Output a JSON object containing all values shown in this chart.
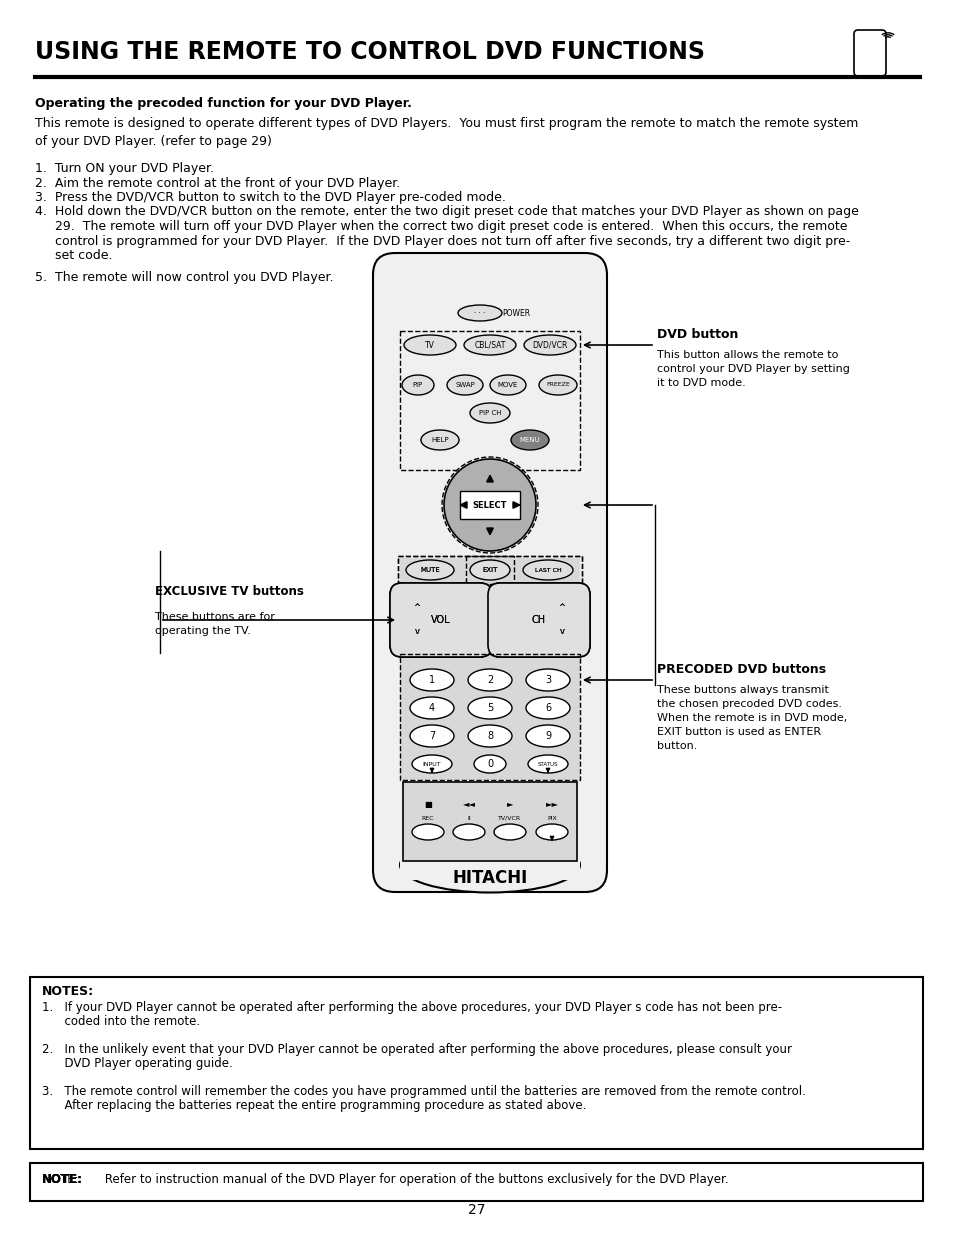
{
  "title": "USING THE REMOTE TO CONTROL DVD FUNCTIONS",
  "page_number": "27",
  "background_color": "#ffffff",
  "text_color": "#000000",
  "section_heading": "Operating the precoded function for your DVD Player.",
  "intro_text": "This remote is designed to operate different types of DVD Players.  You must first program the remote to match the remote system\nof your DVD Player. (refer to page 29)",
  "step1": "1.  Turn ON your DVD Player.",
  "step2": "2.  Aim the remote control at the front of your DVD Player.",
  "step3": "3.  Press the DVD/VCR button to switch to the DVD Player pre-coded mode.",
  "step4a": "4.  Hold down the DVD/VCR button on the remote, enter the two digit preset code that matches your DVD Player as shown on page",
  "step4b": "     29.  The remote will turn off your DVD Player when the correct two digit preset code is entered.  When this occurs, the remote",
  "step4c": "     control is programmed for your DVD Player.  If the DVD Player does not turn off after five seconds, try a different two digit pre-",
  "step4d": "     set code.",
  "step5": "5.  The remote will now control you DVD Player.",
  "notes_title": "NOTES:",
  "note1a": "1.   If your DVD Player cannot be operated after performing the above procedures, your DVD Player s code has not been pre-",
  "note1b": "      coded into the remote.",
  "note2a": "2.   In the unlikely event that your DVD Player cannot be operated after performing the above procedures, please consult your",
  "note2b": "      DVD Player operating guide.",
  "note3a": "3.   The remote control will remember the codes you have programmed until the batteries are removed from the remote control.",
  "note3b": "      After replacing the batteries repeat the entire programming procedure as stated above.",
  "note_bold": "NOTE:",
  "note_rest": "       Refer to instruction manual of the DVD Player for operation of the buttons exclusively for the DVD Player.",
  "dvd_button_label": "DVD button",
  "dvd_button_desc": "This button allows the remote to\ncontrol your DVD Player by setting\nit to DVD mode.",
  "exclusive_tv_label": "EXCLUSIVE TV buttons",
  "exclusive_tv_desc": "These buttons are for\noperating the TV.",
  "precoded_label": "PRECODED DVD buttons",
  "precoded_desc": "These buttons always transmit\nthe chosen precoded DVD codes.\nWhen the remote is in DVD mode,\nEXIT button is used as ENTER\nbutton.",
  "remote_body_color": "#f0f0f0",
  "remote_btn_color": "#e0e0e0",
  "remote_dark_color": "#b0b0b0"
}
